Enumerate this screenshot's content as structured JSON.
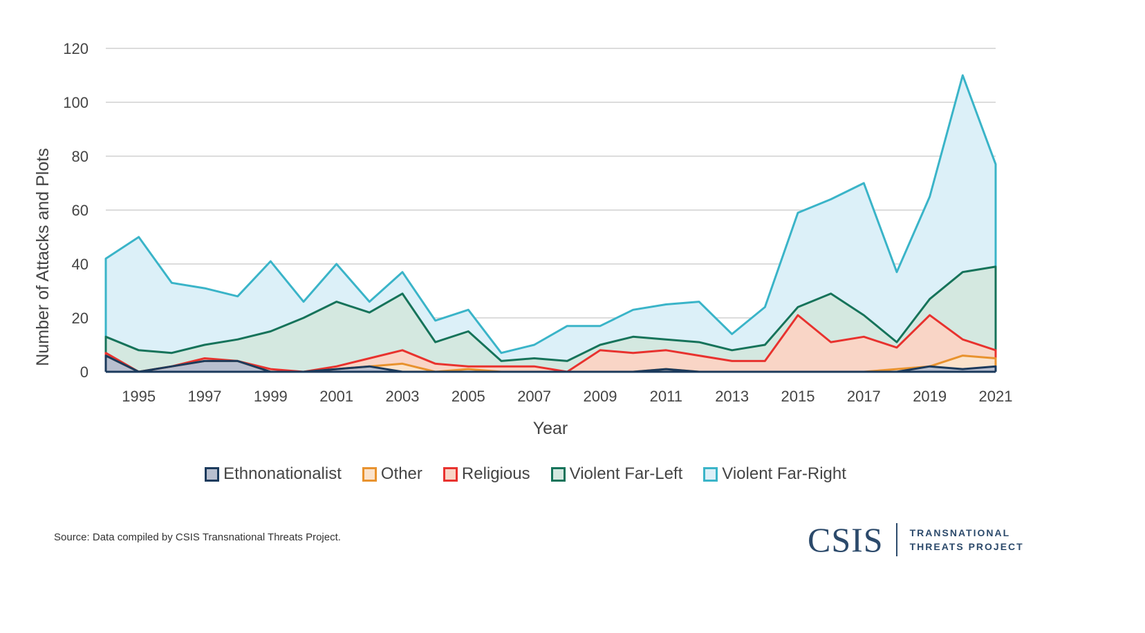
{
  "chart_data": {
    "type": "area",
    "stacked": true,
    "xlabel": "Year",
    "ylabel": "Number of Attacks and Plots",
    "ylim": [
      0,
      120
    ],
    "yticks": [
      0,
      20,
      40,
      60,
      80,
      100,
      120
    ],
    "xticks": [
      1995,
      1997,
      1999,
      2001,
      2003,
      2005,
      2007,
      2009,
      2011,
      2013,
      2015,
      2017,
      2019,
      2021
    ],
    "grid": true,
    "legend_position": "bottom",
    "x": [
      1994,
      1995,
      1996,
      1997,
      1998,
      1999,
      2000,
      2001,
      2002,
      2003,
      2004,
      2005,
      2006,
      2007,
      2008,
      2009,
      2010,
      2011,
      2012,
      2013,
      2014,
      2015,
      2016,
      2017,
      2018,
      2019,
      2020,
      2021
    ],
    "series": [
      {
        "name": "Ethnonationalist",
        "stroke": "#1b3a5c",
        "fill": "#b8bfcf",
        "values": [
          6,
          0,
          2,
          4,
          4,
          0,
          0,
          1,
          2,
          0,
          0,
          0,
          0,
          0,
          0,
          0,
          0,
          1,
          0,
          0,
          0,
          0,
          0,
          0,
          0,
          2,
          1,
          2
        ]
      },
      {
        "name": "Other",
        "stroke": "#e8922e",
        "fill": "#fbe3cc",
        "values": [
          0,
          0,
          0,
          0,
          0,
          0,
          0,
          0,
          0,
          3,
          0,
          1,
          0,
          0,
          0,
          0,
          0,
          0,
          0,
          0,
          0,
          0,
          0,
          0,
          1,
          0,
          5,
          3
        ]
      },
      {
        "name": "Religious",
        "stroke": "#e8322e",
        "fill": "#f9d5c6",
        "values": [
          1,
          0,
          0,
          1,
          0,
          1,
          0,
          1,
          3,
          5,
          3,
          1,
          2,
          2,
          0,
          8,
          7,
          7,
          6,
          4,
          4,
          21,
          11,
          13,
          8,
          19,
          6,
          3
        ]
      },
      {
        "name": "Violent Far-Left",
        "stroke": "#16735a",
        "fill": "#d4e8e0",
        "values": [
          6,
          8,
          5,
          5,
          8,
          14,
          20,
          24,
          17,
          21,
          8,
          13,
          2,
          3,
          4,
          2,
          6,
          4,
          5,
          4,
          6,
          3,
          18,
          8,
          2,
          6,
          25,
          31
        ]
      },
      {
        "name": "Violent Far-Right",
        "stroke": "#3ab4c8",
        "fill": "#dcf0f8",
        "values": [
          29,
          42,
          26,
          21,
          16,
          26,
          6,
          14,
          4,
          8,
          8,
          8,
          3,
          5,
          13,
          7,
          10,
          13,
          15,
          6,
          14,
          35,
          35,
          49,
          26,
          38,
          73,
          38
        ]
      }
    ]
  },
  "source": "Source: Data compiled by CSIS Transnational Threats Project.",
  "logo": {
    "mark": "CSIS",
    "line1": "TRANSNATIONAL",
    "line2": "THREATS PROJECT"
  }
}
